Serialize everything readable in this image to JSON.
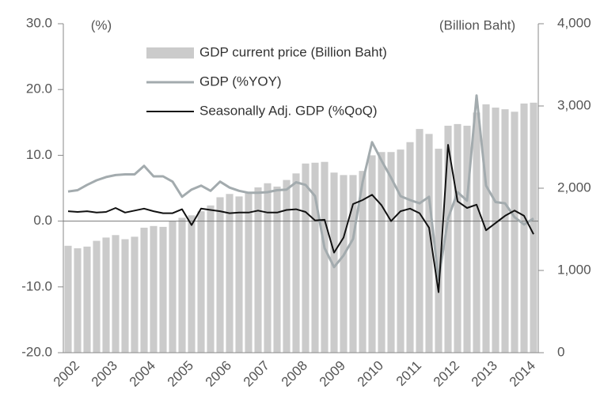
{
  "chart_data": {
    "type": "bar",
    "y_axis_label": "(%)",
    "y2_axis_label": "(Billion Baht)",
    "categories": [
      "2002",
      null,
      null,
      null,
      "2003",
      null,
      null,
      null,
      "2004",
      null,
      null,
      null,
      "2005",
      null,
      null,
      null,
      "2006",
      null,
      null,
      null,
      "2007",
      null,
      null,
      null,
      "2008",
      null,
      null,
      null,
      "2009",
      null,
      null,
      null,
      "2010",
      null,
      null,
      null,
      "2011",
      null,
      null,
      null,
      "2012",
      null,
      null,
      null,
      "2013",
      null,
      null,
      null,
      "2014",
      null
    ],
    "series": [
      {
        "name": "GDP current price (Billion Baht)",
        "type": "bar",
        "axis": "y2",
        "color": "#cbcbcb",
        "values": [
          1300,
          1270,
          1290,
          1360,
          1400,
          1430,
          1380,
          1410,
          1520,
          1540,
          1530,
          1600,
          1640,
          1670,
          1720,
          1790,
          1890,
          1930,
          1900,
          1950,
          2010,
          2060,
          2020,
          2100,
          2180,
          2300,
          2310,
          2320,
          2190,
          2160,
          2160,
          2210,
          2400,
          2440,
          2440,
          2470,
          2560,
          2720,
          2660,
          2480,
          2760,
          2780,
          2760,
          2920,
          3020,
          2980,
          2960,
          2930,
          3030,
          3040
        ]
      },
      {
        "name": "GDP (%YOY)",
        "type": "line",
        "axis": "y",
        "color": "#a3abae",
        "values": [
          4.5,
          4.7,
          5.5,
          6.2,
          6.7,
          7.0,
          7.1,
          7.1,
          8.4,
          6.8,
          6.8,
          6.0,
          3.7,
          4.8,
          5.4,
          4.6,
          6.0,
          5.1,
          4.6,
          4.3,
          4.3,
          4.4,
          4.7,
          4.8,
          5.9,
          5.5,
          3.8,
          -4.1,
          -7.0,
          -5.2,
          -2.7,
          5.9,
          12.0,
          9.2,
          6.6,
          3.8,
          3.2,
          2.7,
          3.7,
          -8.9,
          0.4,
          4.4,
          3.1,
          19.1,
          5.4,
          2.9,
          2.7,
          0.6,
          -0.5,
          0.4
        ]
      },
      {
        "name": "Seasonally Adj. GDP (%QoQ)",
        "type": "line",
        "axis": "y",
        "color": "#111111",
        "values": [
          1.5,
          1.4,
          1.5,
          1.3,
          1.4,
          2.0,
          1.3,
          1.6,
          1.9,
          1.5,
          1.2,
          1.2,
          1.8,
          -0.6,
          1.9,
          1.7,
          1.5,
          1.2,
          1.3,
          1.3,
          1.6,
          1.3,
          1.3,
          1.7,
          1.8,
          1.4,
          0.1,
          0.2,
          -4.8,
          -2.5,
          2.6,
          3.2,
          4.0,
          2.4,
          0.0,
          1.5,
          1.9,
          1.2,
          -1.0,
          -10.8,
          11.6,
          3.0,
          2.0,
          2.5,
          -1.4,
          -0.3,
          0.8,
          1.6,
          0.8,
          -2.0
        ]
      }
    ],
    "ylim": [
      -20,
      30
    ],
    "yticks": [
      {
        "value": -20,
        "label": "-20.0"
      },
      {
        "value": -10,
        "label": "-10.0"
      },
      {
        "value": 0,
        "label": "0.0"
      },
      {
        "value": 10,
        "label": "10.0"
      },
      {
        "value": 20,
        "label": "20.0"
      },
      {
        "value": 30,
        "label": "30.0"
      }
    ],
    "y2lim": [
      0,
      4000
    ],
    "y2ticks": [
      0,
      {
        "value": 1000,
        "label": "1,000"
      },
      {
        "value": 2000,
        "label": "2,000"
      },
      {
        "value": 3000,
        "label": "3,000"
      },
      {
        "value": 4000,
        "label": "4,000"
      }
    ],
    "legend": "top"
  }
}
